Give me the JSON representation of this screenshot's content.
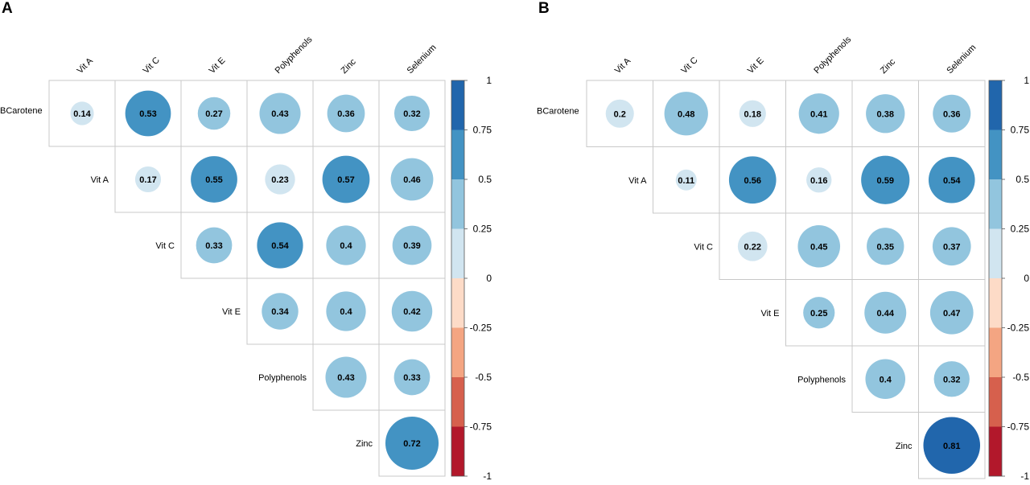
{
  "colors": {
    "scale": [
      "#b2182b",
      "#d6604d",
      "#f4a582",
      "#fddbc7",
      "#d1e5f0",
      "#92c5de",
      "#4393c3",
      "#2166ac"
    ],
    "grid": "#c8c8c8"
  },
  "chart_data": [
    {
      "type": "heatmap",
      "subtype": "correlation-upper-triangle-circles",
      "panel_label": "A",
      "column_labels": [
        "Vit A",
        "Vit C",
        "Vit E",
        "Polyphenols",
        "Zinc",
        "Selenium"
      ],
      "row_labels": [
        "BCarotene",
        "Vit A",
        "Vit C",
        "Vit E",
        "Polyphenols",
        "Zinc"
      ],
      "values": [
        [
          0.14,
          0.53,
          0.27,
          0.43,
          0.36,
          0.32
        ],
        [
          null,
          0.17,
          0.55,
          0.23,
          0.57,
          0.46
        ],
        [
          null,
          null,
          0.33,
          0.54,
          0.4,
          0.39
        ],
        [
          null,
          null,
          null,
          0.34,
          0.4,
          0.42
        ],
        [
          null,
          null,
          null,
          null,
          0.43,
          0.33
        ],
        [
          null,
          null,
          null,
          null,
          null,
          0.72
        ]
      ],
      "colorbar": {
        "range": [
          -1,
          1
        ],
        "tick_labels": [
          "1",
          "0.75",
          "0.5",
          "0.25",
          "0",
          "-0.25",
          "-0.5",
          "-0.75",
          "-1"
        ]
      }
    },
    {
      "type": "heatmap",
      "subtype": "correlation-upper-triangle-circles",
      "panel_label": "B",
      "column_labels": [
        "Vit A",
        "Vit C",
        "Vit E",
        "Polyphenols",
        "Zinc",
        "Selenium"
      ],
      "row_labels": [
        "BCarotene",
        "Vit A",
        "Vit C",
        "Vit E",
        "Polyphenols",
        "Zinc"
      ],
      "values": [
        [
          0.2,
          0.48,
          0.18,
          0.41,
          0.38,
          0.36
        ],
        [
          null,
          0.11,
          0.56,
          0.16,
          0.59,
          0.54
        ],
        [
          null,
          null,
          0.22,
          0.45,
          0.35,
          0.37
        ],
        [
          null,
          null,
          null,
          0.25,
          0.44,
          0.47
        ],
        [
          null,
          null,
          null,
          null,
          0.4,
          0.32
        ],
        [
          null,
          null,
          null,
          null,
          null,
          0.81
        ]
      ],
      "colorbar": {
        "range": [
          -1,
          1
        ],
        "tick_labels": [
          "1",
          "0.75",
          "0.5",
          "0.25",
          "0",
          "-0.25",
          "-0.5",
          "-0.75",
          "-1"
        ]
      }
    }
  ]
}
